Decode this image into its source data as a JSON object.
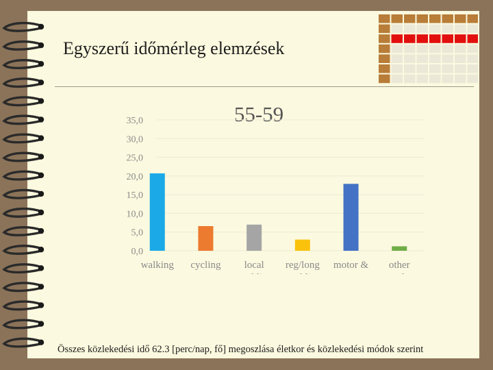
{
  "slide": {
    "title": "Egyszerű időmérleg elemzések",
    "caption": "Összes közlekedési idő 62.3 [perc/nap, fő] megoszlása életkor és közlekedési módok szerint"
  },
  "chart_data": {
    "type": "bar",
    "title": "55-59",
    "categories": [
      [
        "walking"
      ],
      [
        "cycling"
      ],
      [
        "local",
        "public"
      ],
      [
        "reg/long",
        "public"
      ],
      [
        "motor &",
        "car"
      ],
      [
        "other",
        "modes"
      ]
    ],
    "values": [
      20.7,
      6.6,
      7.0,
      3.0,
      17.9,
      1.2
    ],
    "colors": [
      "#1ba9e8",
      "#ec7a2f",
      "#a5a5a5",
      "#fbc20d",
      "#4472c4",
      "#6fad47"
    ],
    "ylim": [
      0,
      35
    ],
    "yticks": [
      0,
      5,
      10,
      15,
      20,
      25,
      30,
      35
    ],
    "ytick_labels": [
      "0,0",
      "5,0",
      "10,0",
      "15,0",
      "20,0",
      "25,0",
      "30,0",
      "35,0"
    ],
    "xlabel": "",
    "ylabel": "",
    "grid": true,
    "legend": "none",
    "title_color": "#555555",
    "label_color": "#8a8a8a"
  }
}
